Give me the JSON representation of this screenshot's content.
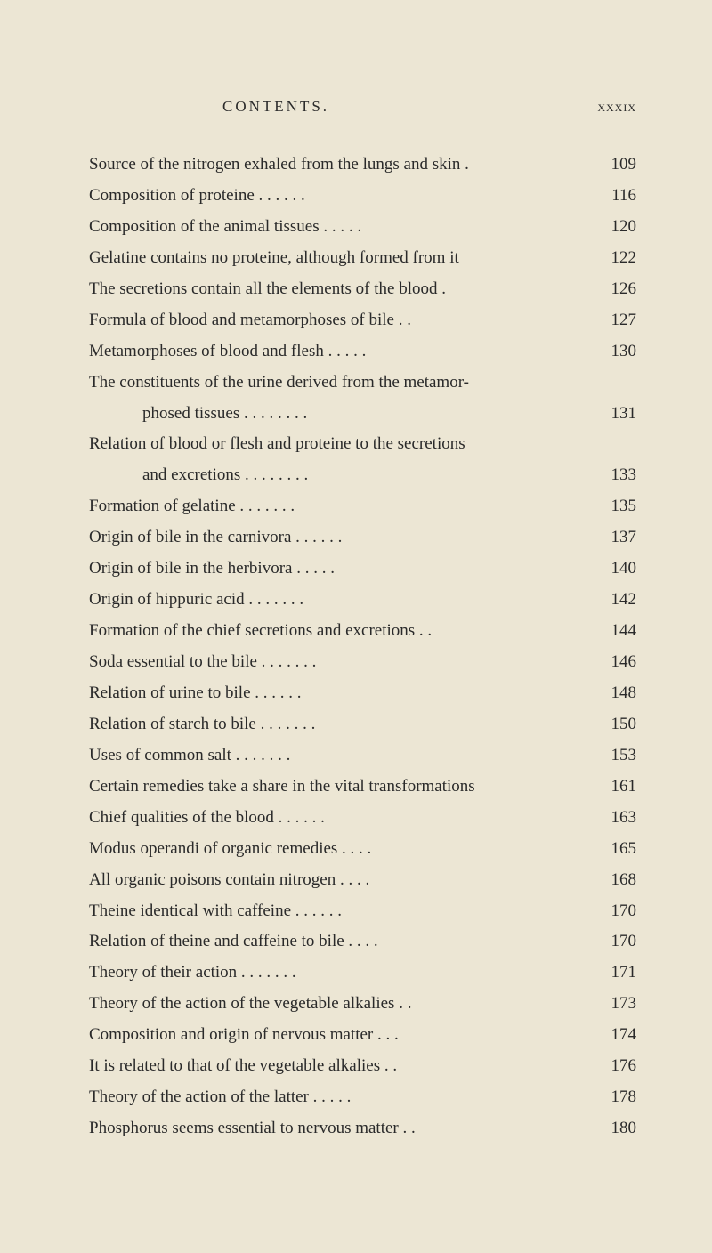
{
  "header": {
    "title": "CONTENTS.",
    "pageLabel": "xxxix"
  },
  "entries": [
    {
      "text": "Source of the nitrogen exhaled from the lungs and skin   .",
      "page": "109",
      "indent": false
    },
    {
      "text": "Composition of proteine        .       .       .       .       .       .",
      "page": "116",
      "indent": false
    },
    {
      "text": "Composition of the animal tissues    .       .       .       .       .",
      "page": "120",
      "indent": false
    },
    {
      "text": "Gelatine contains no proteine, although formed from it",
      "page": "122",
      "indent": false
    },
    {
      "text": "The secretions contain all the elements of the blood      .",
      "page": "126",
      "indent": false
    },
    {
      "text": "Formula of blood and metamorphoses of bile        .       .",
      "page": "127",
      "indent": false
    },
    {
      "text": "Metamorphoses of blood and flesh   .       .       .       .       .",
      "page": "130",
      "indent": false
    },
    {
      "text": "The constituents of the urine derived from the metamor-",
      "page": "",
      "indent": false
    },
    {
      "text": "phosed tissues   .       .       .       .       .       .       .       .",
      "page": "131",
      "indent": true
    },
    {
      "text": "Relation of blood or flesh and proteine to the secretions",
      "page": "",
      "indent": false
    },
    {
      "text": "and excretions   .       .       .       .       .       .       .       .",
      "page": "133",
      "indent": true
    },
    {
      "text": "Formation of gelatine   .       .       .       .       .       .       .",
      "page": "135",
      "indent": false
    },
    {
      "text": "Origin of bile in the carnivora   .       .       .       .       .       .",
      "page": "137",
      "indent": false
    },
    {
      "text": "Origin of bile in the herbivora        .       .       .       .       .",
      "page": "140",
      "indent": false
    },
    {
      "text": "Origin of hippuric acid        .       .       .       .       .       .       .",
      "page": "142",
      "indent": false
    },
    {
      "text": "Formation of the chief secretions and excretions .       .",
      "page": "144",
      "indent": false
    },
    {
      "text": "Soda essential to the bile .       .       .       .       .       .       .",
      "page": "146",
      "indent": false
    },
    {
      "text": "Relation of urine to bile        .       .       .       .       .       .",
      "page": "148",
      "indent": false
    },
    {
      "text": "Relation of starch to bile .       .       .       .       .       .       .",
      "page": "150",
      "indent": false
    },
    {
      "text": "Uses of common salt      .       .       .       .       .       .       .",
      "page": "153",
      "indent": false
    },
    {
      "text": "Certain remedies take a share in the vital transformations",
      "page": "161",
      "indent": false
    },
    {
      "text": "Chief qualities of the blood .       .       .       .       .       .",
      "page": "163",
      "indent": false
    },
    {
      "text": "Modus operandi of organic remedies        .       .       .       .",
      "page": "165",
      "indent": false
    },
    {
      "text": "All organic poisons contain nitrogen     .       .       .       .",
      "page": "168",
      "indent": false
    },
    {
      "text": "Theine identical with caffeine   .       .       .       .       .       .",
      "page": "170",
      "indent": false
    },
    {
      "text": "Relation of theine and caffeine to bile .       .       .       .",
      "page": "170",
      "indent": false
    },
    {
      "text": "Theory of their action        .       .       .       .       .       .       .",
      "page": "171",
      "indent": false
    },
    {
      "text": "Theory of the action of the vegetable alkalies       .       .",
      "page": "173",
      "indent": false
    },
    {
      "text": "Composition and origin of nervous matter        .       .       .",
      "page": "174",
      "indent": false
    },
    {
      "text": "It is related to that of the vegetable alkalies        .       .",
      "page": "176",
      "indent": false
    },
    {
      "text": "Theory of the action of the latter     .       .       .       .       .",
      "page": "178",
      "indent": false
    },
    {
      "text": "Phosphorus seems essential to nervous matter       .       .",
      "page": "180",
      "indent": false
    }
  ]
}
